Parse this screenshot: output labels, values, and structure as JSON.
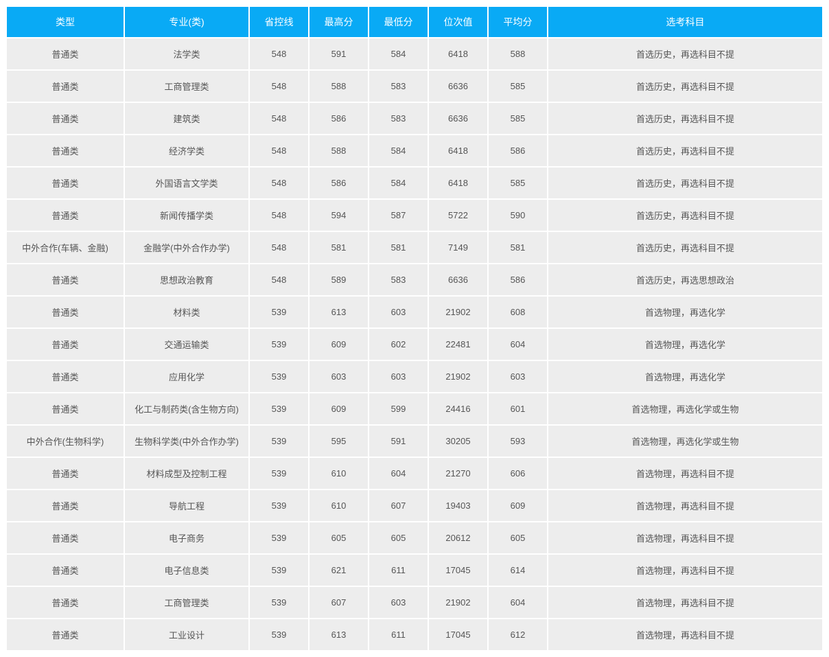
{
  "table": {
    "columns": [
      "类型",
      "专业(类)",
      "省控线",
      "最高分",
      "最低分",
      "位次值",
      "平均分",
      "选考科目"
    ],
    "rows": [
      [
        "普通类",
        "法学类",
        "548",
        "591",
        "584",
        "6418",
        "588",
        "首选历史，再选科目不提"
      ],
      [
        "普通类",
        "工商管理类",
        "548",
        "588",
        "583",
        "6636",
        "585",
        "首选历史，再选科目不提"
      ],
      [
        "普通类",
        "建筑类",
        "548",
        "586",
        "583",
        "6636",
        "585",
        "首选历史，再选科目不提"
      ],
      [
        "普通类",
        "经济学类",
        "548",
        "588",
        "584",
        "6418",
        "586",
        "首选历史，再选科目不提"
      ],
      [
        "普通类",
        "外国语言文学类",
        "548",
        "586",
        "584",
        "6418",
        "585",
        "首选历史，再选科目不提"
      ],
      [
        "普通类",
        "新闻传播学类",
        "548",
        "594",
        "587",
        "5722",
        "590",
        "首选历史，再选科目不提"
      ],
      [
        "中外合作(车辆、金融)",
        "金融学(中外合作办学)",
        "548",
        "581",
        "581",
        "7149",
        "581",
        "首选历史，再选科目不提"
      ],
      [
        "普通类",
        "思想政治教育",
        "548",
        "589",
        "583",
        "6636",
        "586",
        "首选历史，再选思想政治"
      ],
      [
        "普通类",
        "材料类",
        "539",
        "613",
        "603",
        "21902",
        "608",
        "首选物理，再选化学"
      ],
      [
        "普通类",
        "交通运输类",
        "539",
        "609",
        "602",
        "22481",
        "604",
        "首选物理，再选化学"
      ],
      [
        "普通类",
        "应用化学",
        "539",
        "603",
        "603",
        "21902",
        "603",
        "首选物理，再选化学"
      ],
      [
        "普通类",
        "化工与制药类(含生物方向)",
        "539",
        "609",
        "599",
        "24416",
        "601",
        "首选物理，再选化学或生物"
      ],
      [
        "中外合作(生物科学)",
        "生物科学类(中外合作办学)",
        "539",
        "595",
        "591",
        "30205",
        "593",
        "首选物理，再选化学或生物"
      ],
      [
        "普通类",
        "材料成型及控制工程",
        "539",
        "610",
        "604",
        "21270",
        "606",
        "首选物理，再选科目不提"
      ],
      [
        "普通类",
        "导航工程",
        "539",
        "610",
        "607",
        "19403",
        "609",
        "首选物理，再选科目不提"
      ],
      [
        "普通类",
        "电子商务",
        "539",
        "605",
        "605",
        "20612",
        "605",
        "首选物理，再选科目不提"
      ],
      [
        "普通类",
        "电子信息类",
        "539",
        "621",
        "611",
        "17045",
        "614",
        "首选物理，再选科目不提"
      ],
      [
        "普通类",
        "工商管理类",
        "539",
        "607",
        "603",
        "21902",
        "604",
        "首选物理，再选科目不提"
      ],
      [
        "普通类",
        "工业设计",
        "539",
        "613",
        "611",
        "17045",
        "612",
        "首选物理，再选科目不提"
      ]
    ],
    "header_bg": "#09aaf5",
    "header_color": "#ffffff",
    "row_bg": "#ededed",
    "text_color": "#555555"
  }
}
